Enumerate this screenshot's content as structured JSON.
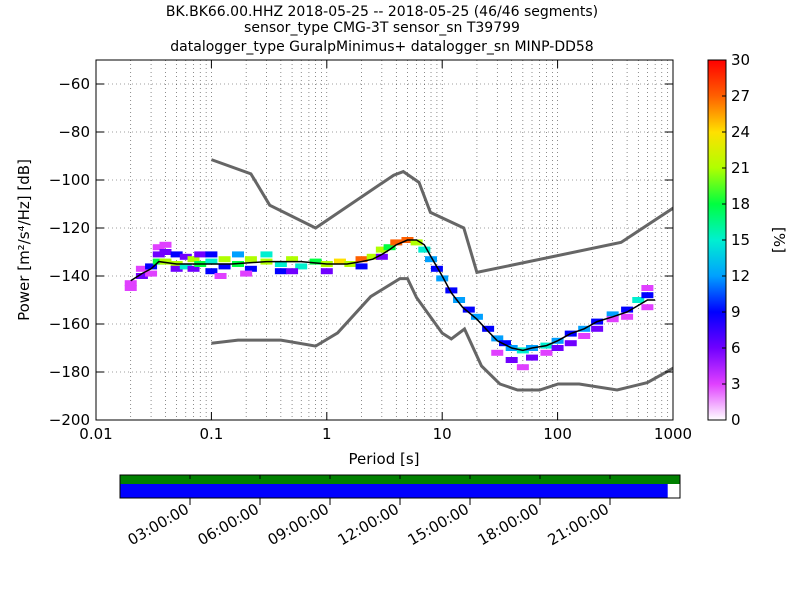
{
  "chart_data": [
    {
      "type": "heatmap",
      "title_lines": [
        "BK.BK66.00.HHZ   2018-05-25 -- 2018-05-25  (46/46 segments)",
        "sensor_type CMG-3T sensor_sn T39799",
        "datalogger_type GuralpMinimus+ datalogger_sn MINP-DD58"
      ],
      "xlabel": "Period [s]",
      "ylabel": "Power [m²/s⁴/Hz] [dB]",
      "x_scale": "log",
      "xlim": [
        0.01,
        1000
      ],
      "ylim": [
        -200,
        -50
      ],
      "x_ticks": [
        {
          "value": 0.01,
          "label": "0.01"
        },
        {
          "value": 0.1,
          "label": "0.1"
        },
        {
          "value": 1,
          "label": "1"
        },
        {
          "value": 10,
          "label": "10"
        },
        {
          "value": 100,
          "label": "100"
        },
        {
          "value": 1000,
          "label": "1000"
        }
      ],
      "y_ticks": [
        {
          "value": -60,
          "label": "−60"
        },
        {
          "value": -80,
          "label": "−80"
        },
        {
          "value": -100,
          "label": "−100"
        },
        {
          "value": -120,
          "label": "−120"
        },
        {
          "value": -140,
          "label": "−140"
        },
        {
          "value": -160,
          "label": "−160"
        },
        {
          "value": -180,
          "label": "−180"
        },
        {
          "value": -200,
          "label": "−200"
        }
      ],
      "grid": true,
      "noise_models": [
        {
          "period": [
            0.1,
            0.22,
            0.32,
            0.8,
            3.8,
            4.6,
            6.3,
            7.9,
            15.4,
            20,
            354.8,
            10000
          ],
          "power": [
            -91.5,
            -97.4,
            -110.5,
            -120,
            -98,
            -96.5,
            -101,
            -113.5,
            -120,
            -138.5,
            -126,
            -80
          ]
        },
        {
          "period": [
            0.1,
            0.17,
            0.4,
            0.8,
            1.24,
            2.4,
            4.3,
            5,
            6,
            10,
            12,
            15.6,
            21.9,
            31.6,
            45,
            70,
            101,
            154,
            328,
            600,
            10000
          ],
          "power": [
            -168,
            -166.7,
            -166.7,
            -169.2,
            -163.7,
            -148.6,
            -141.1,
            -141.1,
            -149,
            -163.8,
            -166.2,
            -162.1,
            -177.5,
            -185,
            -187.5,
            -187.5,
            -185,
            -185,
            -187.5,
            -184.4,
            -151.5
          ]
        }
      ],
      "mean_curve": {
        "period": [
          0.02,
          0.025,
          0.03,
          0.035,
          0.05,
          0.08,
          0.15,
          0.3,
          0.6,
          1,
          1.5,
          2,
          2.5,
          3,
          3.5,
          4,
          5,
          6,
          7,
          8,
          10,
          12,
          15,
          20,
          25,
          30,
          40,
          50,
          60,
          80,
          100,
          130,
          170,
          220,
          300,
          400,
          600,
          700
        ],
        "power": [
          -142,
          -139,
          -137,
          -134,
          -135,
          -135,
          -135,
          -134,
          -134,
          -135,
          -135,
          -134,
          -133,
          -131,
          -129,
          -127,
          -125,
          -125,
          -127,
          -132,
          -140,
          -147,
          -153,
          -158,
          -163,
          -167,
          -170,
          -171,
          -170,
          -169,
          -167,
          -164,
          -162,
          -159,
          -157,
          -155,
          -150,
          -150
        ]
      },
      "heatmap_cells": [
        [
          0.02,
          -143,
          4
        ],
        [
          0.02,
          -145,
          3
        ],
        [
          0.025,
          -140,
          6
        ],
        [
          0.025,
          -137,
          3
        ],
        [
          0.03,
          -136,
          10
        ],
        [
          0.03,
          -139,
          3
        ],
        [
          0.035,
          -131,
          5
        ],
        [
          0.035,
          -134,
          18
        ],
        [
          0.035,
          -128,
          3
        ],
        [
          0.04,
          -134,
          22
        ],
        [
          0.04,
          -130,
          6
        ],
        [
          0.04,
          -127,
          3
        ],
        [
          0.05,
          -135,
          20
        ],
        [
          0.05,
          -131,
          8
        ],
        [
          0.05,
          -137,
          5
        ],
        [
          0.06,
          -136,
          16
        ],
        [
          0.06,
          -132,
          7
        ],
        [
          0.07,
          -133,
          20
        ],
        [
          0.07,
          -137,
          6
        ],
        [
          0.08,
          -135,
          18
        ],
        [
          0.08,
          -131,
          5
        ],
        [
          0.1,
          -134,
          16
        ],
        [
          0.1,
          -138,
          8
        ],
        [
          0.1,
          -131,
          8
        ],
        [
          0.13,
          -133,
          20
        ],
        [
          0.13,
          -136,
          10
        ],
        [
          0.17,
          -135,
          18
        ],
        [
          0.17,
          -131,
          12
        ],
        [
          0.22,
          -133,
          22
        ],
        [
          0.22,
          -137,
          8
        ],
        [
          0.3,
          -134,
          20
        ],
        [
          0.3,
          -131,
          14
        ],
        [
          0.4,
          -135,
          16
        ],
        [
          0.4,
          -138,
          10
        ],
        [
          0.5,
          -133,
          20
        ],
        [
          0.6,
          -136,
          14
        ],
        [
          0.8,
          -134,
          18
        ],
        [
          1,
          -135,
          20
        ],
        [
          1.3,
          -134,
          24
        ],
        [
          1.6,
          -135,
          22
        ],
        [
          2,
          -133,
          26
        ],
        [
          2.5,
          -132,
          20
        ],
        [
          3,
          -129,
          22
        ],
        [
          3.5,
          -128,
          18
        ],
        [
          4,
          -126,
          26
        ],
        [
          5,
          -125,
          28
        ],
        [
          6,
          -126,
          22
        ],
        [
          7,
          -129,
          16
        ],
        [
          8,
          -133,
          12
        ],
        [
          9,
          -137,
          10
        ],
        [
          10,
          -141,
          12
        ],
        [
          12,
          -146,
          10
        ],
        [
          14,
          -150,
          12
        ],
        [
          17,
          -154,
          10
        ],
        [
          20,
          -157,
          12
        ],
        [
          25,
          -162,
          10
        ],
        [
          30,
          -166,
          12
        ],
        [
          35,
          -168,
          10
        ],
        [
          40,
          -170,
          12
        ],
        [
          50,
          -171,
          14
        ],
        [
          60,
          -170,
          12
        ],
        [
          80,
          -169,
          14
        ],
        [
          100,
          -167,
          12
        ],
        [
          130,
          -164,
          10
        ],
        [
          170,
          -162,
          12
        ],
        [
          220,
          -159,
          10
        ],
        [
          300,
          -156,
          12
        ],
        [
          400,
          -154,
          10
        ],
        [
          500,
          -150,
          14
        ],
        [
          600,
          -148,
          10
        ],
        [
          30,
          -172,
          4
        ],
        [
          40,
          -175,
          5
        ],
        [
          50,
          -178,
          3
        ],
        [
          60,
          -174,
          6
        ],
        [
          80,
          -172,
          4
        ],
        [
          100,
          -170,
          6
        ],
        [
          130,
          -168,
          5
        ],
        [
          170,
          -165,
          4
        ],
        [
          220,
          -162,
          5
        ],
        [
          300,
          -158,
          4
        ],
        [
          400,
          -157,
          3
        ],
        [
          600,
          -145,
          4
        ],
        [
          600,
          -153,
          4
        ],
        [
          2,
          -136,
          8
        ],
        [
          3,
          -132,
          6
        ],
        [
          1,
          -138,
          6
        ],
        [
          0.5,
          -138,
          5
        ],
        [
          0.2,
          -139,
          4
        ],
        [
          0.12,
          -140,
          3
        ]
      ]
    },
    {
      "type": "colorbar",
      "label": "[%]",
      "range": [
        0,
        30
      ],
      "ticks": [
        "0",
        "3",
        "6",
        "9",
        "12",
        "15",
        "18",
        "21",
        "24",
        "27",
        "30"
      ]
    },
    {
      "type": "timeline",
      "data_coverage_fraction": 0.978,
      "labels": [
        "03:00:00",
        "06:00:00",
        "09:00:00",
        "12:00:00",
        "15:00:00",
        "18:00:00",
        "21:00:00"
      ],
      "colors": {
        "coverage_top": "#008000",
        "coverage_bottom": "#0000ff",
        "noise_model": "#666666"
      }
    }
  ]
}
